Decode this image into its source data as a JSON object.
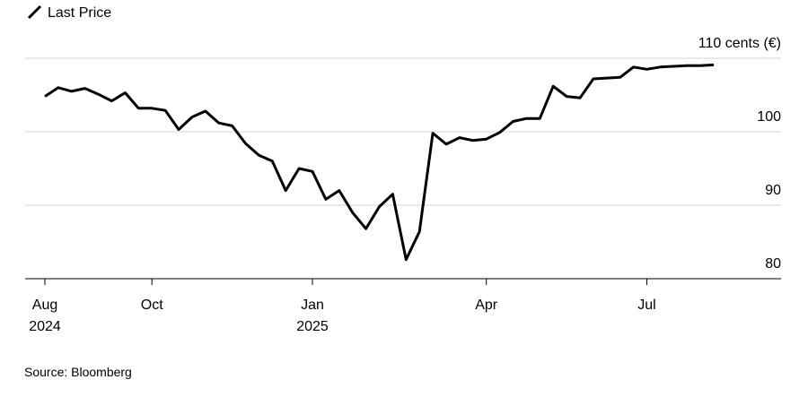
{
  "chart_data": {
    "type": "line",
    "title": "Last Price",
    "source": "Source: Bloomberg",
    "categories": [
      "Aug",
      null,
      null,
      null,
      null,
      null,
      null,
      null,
      "Oct",
      null,
      null,
      null,
      null,
      null,
      null,
      null,
      null,
      null,
      null,
      null,
      "Jan",
      null,
      null,
      null,
      null,
      null,
      null,
      null,
      null,
      null,
      null,
      null,
      null,
      "Apr",
      null,
      null,
      null,
      null,
      null,
      null,
      null,
      null,
      null,
      null,
      null,
      "Jul",
      null,
      null,
      null,
      null,
      null
    ],
    "category_years": [
      "2024",
      null,
      null,
      null,
      null,
      null,
      null,
      null,
      null,
      null,
      null,
      null,
      null,
      null,
      null,
      null,
      null,
      null,
      null,
      null,
      "2025",
      null,
      null,
      null,
      null,
      null,
      null,
      null,
      null,
      null,
      null,
      null,
      null,
      null,
      null,
      null,
      null,
      null,
      null,
      null,
      null,
      null,
      null,
      null,
      null,
      null,
      null,
      null,
      null,
      null,
      null
    ],
    "series": [
      {
        "name": "Last Price",
        "color": "#000000",
        "values": [
          104.8,
          106.0,
          105.5,
          105.9,
          105.1,
          104.2,
          105.3,
          103.2,
          103.2,
          102.9,
          100.3,
          102.0,
          102.8,
          101.2,
          100.8,
          98.4,
          96.8,
          96.0,
          92.0,
          95.0,
          94.6,
          90.8,
          92.0,
          89.0,
          86.8,
          89.8,
          91.5,
          82.6,
          86.4,
          99.8,
          98.3,
          99.2,
          98.8,
          99.0,
          99.9,
          101.4,
          101.8,
          101.8,
          106.2,
          104.8,
          104.6,
          107.2,
          107.3,
          107.4,
          108.8,
          108.5,
          108.8,
          108.9,
          109.0,
          109.0,
          109.1
        ]
      }
    ],
    "ylim": [
      80,
      110
    ],
    "yticks": [
      80,
      90,
      100,
      {
        "value": 110,
        "label": "110 cents (€)"
      }
    ],
    "grid": true
  }
}
